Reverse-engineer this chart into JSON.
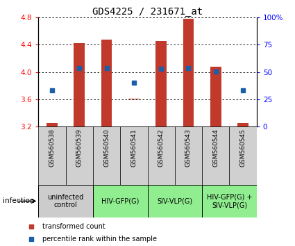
{
  "title": "GDS4225 / 231671_at",
  "samples": [
    "GSM560538",
    "GSM560539",
    "GSM560540",
    "GSM560541",
    "GSM560542",
    "GSM560543",
    "GSM560544",
    "GSM560545"
  ],
  "bar_bottoms": [
    3.2,
    3.2,
    3.2,
    3.6,
    3.2,
    3.2,
    3.2,
    3.2
  ],
  "bar_tops": [
    3.25,
    4.42,
    4.47,
    3.61,
    4.45,
    4.78,
    4.08,
    3.25
  ],
  "blue_dots_y": [
    3.73,
    4.06,
    4.06,
    3.84,
    4.05,
    4.06,
    4.01,
    3.73
  ],
  "ylim": [
    3.2,
    4.8
  ],
  "yticks_left": [
    3.2,
    3.6,
    4.0,
    4.4,
    4.8
  ],
  "yticks_right_vals": [
    0,
    25,
    50,
    75,
    100
  ],
  "yticks_right_labels": [
    "0",
    "25",
    "50",
    "75",
    "100%"
  ],
  "bar_color": "#c0392b",
  "dot_color": "#1a5fa8",
  "title_fontsize": 10,
  "bar_width": 0.4,
  "groups": [
    {
      "label": "uninfected\ncontrol",
      "start": 0,
      "end": 2,
      "color": "#cccccc"
    },
    {
      "label": "HIV-GFP(G)",
      "start": 2,
      "end": 4,
      "color": "#90ee90"
    },
    {
      "label": "SIV-VLP(G)",
      "start": 4,
      "end": 6,
      "color": "#90ee90"
    },
    {
      "label": "HIV-GFP(G) +\nSIV-VLP(G)",
      "start": 6,
      "end": 8,
      "color": "#90ee90"
    }
  ],
  "infection_label": "infection",
  "legend_red": "transformed count",
  "legend_blue": "percentile rank within the sample",
  "sample_label_fontsize": 6.5,
  "group_label_fontsize": 7,
  "legend_fontsize": 7
}
